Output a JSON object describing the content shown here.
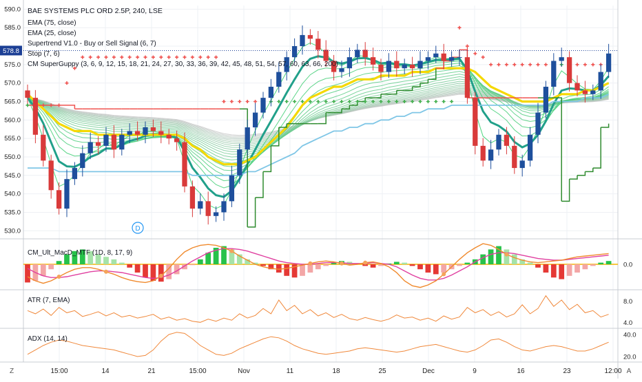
{
  "chart_data": [
    {
      "type": "candlestick",
      "title": "BAE SYSTEMS PLC ORD 2.5P, 240, LSE",
      "indicators": [
        "EMA (75, close)",
        "EMA (25, close)",
        "Supertrend V1.0 - Buy or Sell Signal (6, 7)",
        "Stop (7, 6)",
        "CM SuperGuppy (3, 6, 9, 12, 15, 18, 21, 24, 27, 30, 33, 36, 39, 42, 45, 48, 51, 54, 57, 60, 63, 66, 200)"
      ],
      "y_ticks": [
        530,
        535,
        540,
        545,
        550,
        555,
        560,
        565,
        570,
        575,
        580,
        585,
        590
      ],
      "ylim": [
        528,
        591
      ],
      "last_price": "578.8",
      "marker_label": "D",
      "closes": [
        566,
        556,
        549,
        541,
        536,
        544,
        547,
        551,
        554,
        553,
        556,
        552,
        556,
        557,
        556,
        558,
        557,
        556,
        555,
        554,
        542,
        536,
        538,
        534,
        535,
        538,
        545,
        552,
        558,
        562,
        566,
        569,
        573,
        577,
        580,
        583,
        582,
        579,
        576,
        573,
        574,
        577,
        579,
        577,
        575,
        573,
        576,
        574,
        575,
        574,
        576,
        577,
        578,
        576,
        577,
        577,
        566,
        553,
        549,
        552,
        556,
        553,
        547,
        549,
        556,
        562,
        569,
        576,
        577,
        570,
        568,
        567,
        568,
        573,
        578
      ],
      "series": [
        {
          "name": "EMA (75, close)",
          "values": [
            547,
            547,
            547,
            547,
            546,
            546,
            546,
            546,
            546,
            546,
            546,
            546,
            546,
            546,
            546,
            546,
            546,
            546,
            546,
            546,
            546,
            545,
            545,
            545,
            545,
            545,
            545,
            545,
            546,
            546,
            547,
            548,
            549,
            550,
            551,
            553,
            554,
            555,
            556,
            557,
            557,
            558,
            558,
            559,
            559,
            560,
            560,
            561,
            561,
            562,
            562,
            563,
            563,
            563,
            564,
            564,
            564,
            564,
            564,
            564,
            564,
            564,
            564,
            564,
            564,
            564,
            564,
            565,
            565,
            565,
            565,
            566,
            566,
            566,
            567
          ]
        },
        {
          "name": "EMA (25, close)",
          "values": [
            567,
            565,
            563,
            561,
            559,
            558,
            557,
            557,
            557,
            556,
            556,
            556,
            556,
            556,
            556,
            556,
            556,
            556,
            556,
            556,
            555,
            553,
            552,
            550,
            549,
            548,
            548,
            548,
            549,
            550,
            552,
            554,
            556,
            558,
            561,
            564,
            566,
            567,
            568,
            569,
            569,
            570,
            571,
            571,
            571,
            572,
            572,
            572,
            572,
            573,
            573,
            573,
            574,
            574,
            574,
            574,
            574,
            573,
            571,
            569,
            568,
            567,
            566,
            565,
            565,
            565,
            565,
            566,
            567,
            567,
            567,
            568,
            568,
            569,
            570
          ]
        },
        {
          "name": "Supertrend V1.0 - Buy or Sell Signal (6, 7)",
          "values": [
            564,
            564,
            564,
            564,
            564,
            564,
            563,
            563,
            563,
            563,
            563,
            563,
            563,
            563,
            563,
            563,
            563,
            563,
            563,
            563,
            563,
            563,
            563,
            563,
            563,
            563,
            563,
            563,
            531,
            539,
            546,
            553,
            558,
            559,
            559,
            559,
            559,
            559,
            562,
            562,
            563,
            564,
            565,
            566,
            566,
            567,
            567,
            568,
            568,
            569,
            570,
            571,
            574,
            576,
            577,
            579,
            566,
            566,
            566,
            566,
            566,
            566,
            566,
            566,
            566,
            566,
            566,
            566,
            538,
            544,
            545,
            546,
            547,
            558,
            559
          ]
        },
        {
          "name": "Stop (7, 6)",
          "values": [
            564,
            564,
            564,
            564,
            564,
            570,
            574,
            577,
            577,
            577,
            577,
            577,
            577,
            577,
            577,
            577,
            577,
            577,
            577,
            577,
            577,
            577,
            577,
            577,
            577,
            565,
            565,
            565,
            565,
            565,
            565,
            565,
            565,
            565,
            565,
            565,
            565,
            565,
            565,
            565,
            565,
            565,
            565,
            565,
            565,
            565,
            565,
            565,
            565,
            565,
            565,
            565,
            565,
            565,
            565,
            585,
            580,
            578,
            577,
            575,
            575,
            575,
            575,
            575,
            575,
            575,
            575,
            575,
            575,
            575,
            575,
            575,
            575,
            575,
            575
          ]
        }
      ],
      "oscillators": [
        {
          "title": "CM_Ult_MacD_MTF (1D, 8, 17, 9)",
          "y_ticks": [
            0.0
          ],
          "ylim": [
            -3,
            3
          ],
          "histogram": [
            -2.2,
            -2.0,
            -1.4,
            -0.6,
            0.4,
            1.2,
            1.6,
            1.8,
            1.6,
            1.2,
            0.9,
            0.6,
            0.2,
            -0.4,
            -1.0,
            -1.6,
            -2.0,
            -2.1,
            -1.8,
            -1.2,
            -0.6,
            -0.1,
            0.6,
            1.4,
            2.0,
            2.2,
            1.8,
            1.2,
            0.6,
            0.2,
            -0.2,
            -0.6,
            -1.0,
            -1.4,
            -1.6,
            -1.4,
            -1.0,
            -0.6,
            -0.2,
            0.2,
            0.4,
            0.3,
            0.1,
            -0.2,
            -0.4,
            -0.2,
            0.1,
            0.3,
            0.2,
            -0.2,
            -0.6,
            -1.0,
            -1.2,
            -1.0,
            -0.6,
            -0.2,
            0.2,
            0.6,
            1.2,
            1.8,
            2.2,
            1.8,
            1.2,
            0.6,
            0.2,
            -0.4,
            -1.0,
            -1.6,
            -1.8,
            -1.4,
            -1.0,
            -0.6,
            -0.2,
            0.2,
            0.4
          ],
          "macd": [
            -1.5,
            -2.0,
            -2.3,
            -2.0,
            -1.5,
            -1.0,
            -0.6,
            -0.4,
            -0.4,
            -0.6,
            -0.9,
            -1.2,
            -1.6,
            -1.9,
            -2.1,
            -2.2,
            -2.0,
            -1.4,
            -0.5,
            0.6,
            1.5,
            2.0,
            2.3,
            2.4,
            2.3,
            2.0,
            1.6,
            1.0,
            0.5,
            0.0,
            -0.3,
            -0.5,
            -0.6,
            -0.5,
            -0.3,
            -0.1,
            0.1,
            0.3,
            0.4,
            0.3,
            0.1,
            -0.1,
            0.0,
            0.2,
            0.3,
            0.1,
            -0.3,
            -1.0,
            -2.0,
            -2.6,
            -2.8,
            -2.5,
            -2.0,
            -1.2,
            -0.3,
            0.6,
            1.4,
            2.0,
            2.5,
            2.3,
            1.8,
            1.2,
            0.8,
            0.5,
            0.3,
            0.2,
            0.3,
            0.4,
            0.5,
            0.7,
            0.9,
            1.0,
            1.1,
            1.2,
            1.3
          ],
          "signal": [
            -0.5,
            -1.0,
            -1.4,
            -1.6,
            -1.6,
            -1.5,
            -1.3,
            -1.1,
            -0.9,
            -0.8,
            -0.8,
            -0.9,
            -1.0,
            -1.2,
            -1.4,
            -1.6,
            -1.7,
            -1.6,
            -1.3,
            -0.8,
            -0.2,
            0.4,
            0.9,
            1.4,
            1.7,
            1.9,
            1.9,
            1.8,
            1.6,
            1.3,
            1.0,
            0.7,
            0.4,
            0.2,
            0.1,
            0.0,
            0.0,
            0.1,
            0.2,
            0.2,
            0.2,
            0.1,
            0.1,
            0.1,
            0.2,
            0.1,
            0.0,
            -0.3,
            -0.8,
            -1.3,
            -1.7,
            -1.9,
            -1.9,
            -1.7,
            -1.3,
            -0.8,
            -0.3,
            0.3,
            0.8,
            1.2,
            1.4,
            1.4,
            1.3,
            1.1,
            0.9,
            0.7,
            0.6,
            0.5,
            0.5,
            0.6,
            0.7,
            0.8,
            0.9,
            1.0,
            1.1
          ]
        },
        {
          "title": "ATR (7, EMA)",
          "y_ticks": [
            4.0,
            8.0
          ],
          "ylim": [
            3,
            10
          ],
          "values": [
            6.2,
            5.6,
            6.5,
            5.3,
            6.8,
            5.8,
            6.2,
            5.1,
            5.5,
            6.0,
            5.2,
            5.8,
            5.0,
            5.3,
            4.8,
            5.1,
            5.5,
            4.6,
            5.0,
            4.4,
            4.7,
            4.2,
            4.0,
            4.6,
            4.2,
            4.8,
            4.4,
            5.6,
            4.8,
            5.3,
            6.6,
            5.6,
            8.2,
            6.2,
            7.2,
            5.6,
            6.4,
            5.2,
            5.8,
            4.9,
            5.5,
            4.7,
            4.4,
            4.9,
            4.5,
            4.2,
            4.6,
            5.4,
            4.8,
            5.0,
            4.4,
            4.8,
            4.2,
            5.2,
            4.6,
            5.0,
            6.8,
            5.8,
            6.4,
            5.3,
            6.0,
            5.0,
            5.6,
            7.3,
            5.6,
            6.6,
            9.0,
            7.0,
            8.2,
            6.4,
            7.4,
            5.8,
            6.2,
            5.0,
            5.5
          ]
        },
        {
          "title": "ADX (14, 14)",
          "y_ticks": [
            20.0,
            40.0
          ],
          "ylim": [
            15,
            45
          ],
          "values": [
            22,
            26,
            30,
            33,
            35,
            34,
            32,
            30,
            29,
            28,
            27,
            26,
            24,
            22,
            20,
            21,
            26,
            34,
            40,
            42,
            41,
            36,
            30,
            26,
            22,
            21,
            23,
            27,
            30,
            33,
            36,
            38,
            37,
            34,
            30,
            27,
            25,
            23,
            22,
            23,
            24,
            25,
            27,
            28,
            27,
            26,
            25,
            24,
            25,
            27,
            29,
            30,
            31,
            29,
            27,
            25,
            24,
            26,
            30,
            35,
            36,
            33,
            29,
            26,
            25,
            27,
            29,
            30,
            29,
            27,
            25,
            25,
            27,
            30,
            33
          ]
        }
      ],
      "x_tick_labels": [
        "15:00",
        "14",
        "21",
        "15:00",
        "Nov",
        "11",
        "18",
        "25",
        "Dec",
        "9",
        "16",
        "23",
        "12:00"
      ],
      "time_axis_corner": "Z",
      "price_axis_corner": "A"
    }
  ],
  "colors": {
    "up": "#1e4f9c",
    "down": "#d93a3a",
    "ema75": "#7fc6e6",
    "ema25": "#f5d800",
    "guppy_fast": "#21a08a",
    "supertrend_bear": "#ef5350",
    "supertrend_bull": "#2e8b2e",
    "stop_bear": "#ef5350",
    "stop_bull": "#3fae4a",
    "macd_line": "#f08a2d",
    "signal_line": "#e040a0",
    "atr": "#f0883a",
    "adx": "#f0883a",
    "last_price_bg": "#1c3f95"
  }
}
